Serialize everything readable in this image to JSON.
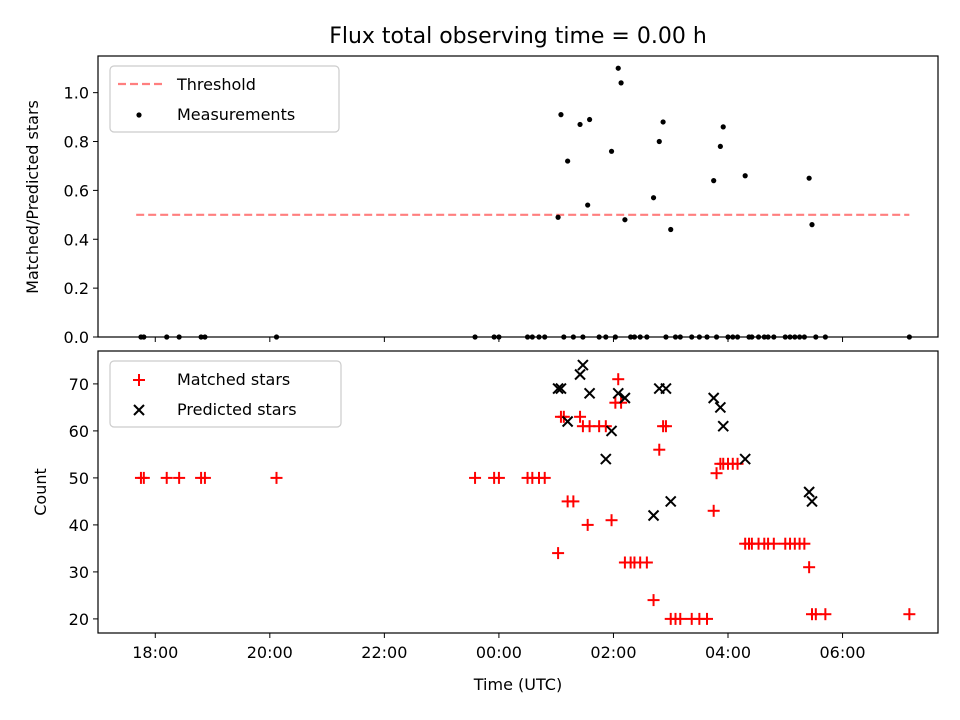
{
  "chart_data": [
    {
      "type": "scatter",
      "title": "Flux total observing time = 0.00 h",
      "xlabel": "",
      "ylabel": "Matched/Predicted stars",
      "xlim": [
        "17:00",
        "07:40"
      ],
      "ylim": [
        0,
        1.15
      ],
      "yticks": [
        "0.0",
        "0.2",
        "0.4",
        "0.6",
        "0.8",
        "1.0"
      ],
      "yticks_values": [
        0,
        0.2,
        0.4,
        0.6,
        0.8,
        1.0
      ],
      "legend": {
        "placement": "upper-left",
        "entries": [
          "Threshold",
          "Measurements"
        ]
      },
      "threshold": {
        "name": "Threshold",
        "value": 0.5,
        "x_start": "17:40",
        "x_end": "07:10",
        "color": "#ff7f7f",
        "style": "dashed"
      },
      "series": [
        {
          "name": "Measurements",
          "color": "#000000",
          "marker": "dot",
          "x": [
            "17:45",
            "17:48",
            "18:12",
            "18:25",
            "18:48",
            "18:52",
            "20:07",
            "23:35",
            "23:55",
            "00:00",
            "00:30",
            "00:35",
            "00:42",
            "00:48",
            "01:02",
            "01:05",
            "01:08",
            "01:12",
            "01:18",
            "01:25",
            "01:28",
            "01:33",
            "01:35",
            "01:45",
            "01:52",
            "01:58",
            "02:02",
            "02:05",
            "02:08",
            "02:12",
            "02:18",
            "02:22",
            "02:28",
            "02:35",
            "02:42",
            "02:48",
            "02:52",
            "02:55",
            "03:00",
            "03:05",
            "03:10",
            "03:22",
            "03:30",
            "03:38",
            "03:45",
            "03:48",
            "03:52",
            "03:55",
            "04:00",
            "04:05",
            "04:10",
            "04:18",
            "04:22",
            "04:25",
            "04:32",
            "04:38",
            "04:42",
            "04:48",
            "05:00",
            "05:05",
            "05:10",
            "05:15",
            "05:20",
            "05:25",
            "05:28",
            "05:32",
            "05:42",
            "07:10"
          ],
          "y": [
            0,
            0,
            0,
            0,
            0,
            0,
            0,
            0,
            0,
            0,
            0,
            0,
            0,
            0,
            0.49,
            0.91,
            0,
            0.72,
            0,
            0.87,
            0,
            0.54,
            0.89,
            0,
            0,
            0.76,
            0,
            1.1,
            1.04,
            0.48,
            0,
            0,
            0,
            0,
            0.57,
            0.8,
            0.88,
            0,
            0.44,
            0,
            0,
            0,
            0,
            0,
            0.64,
            0,
            0.78,
            0.86,
            0,
            0,
            0,
            0.66,
            0,
            0,
            0,
            0,
            0,
            0,
            0,
            0,
            0,
            0,
            0,
            0.65,
            0.46,
            0,
            0,
            0
          ]
        }
      ]
    },
    {
      "type": "scatter",
      "title": "",
      "xlabel": "Time (UTC)",
      "ylabel": "Count",
      "xlim": [
        "17:00",
        "07:40"
      ],
      "xticks": [
        "18:00",
        "20:00",
        "22:00",
        "00:00",
        "02:00",
        "04:00",
        "06:00"
      ],
      "ylim": [
        17,
        77
      ],
      "yticks": [
        "20",
        "30",
        "40",
        "50",
        "60",
        "70"
      ],
      "yticks_values": [
        20,
        30,
        40,
        50,
        60,
        70
      ],
      "legend": {
        "placement": "upper-left",
        "entries": [
          "Matched stars",
          "Predicted stars"
        ]
      },
      "series": [
        {
          "name": "Matched stars",
          "color": "#ff0000",
          "marker": "plus",
          "x": [
            "17:45",
            "17:48",
            "18:12",
            "18:25",
            "18:48",
            "18:52",
            "20:07",
            "23:35",
            "23:55",
            "00:00",
            "00:30",
            "00:35",
            "00:42",
            "00:48",
            "01:02",
            "01:05",
            "01:08",
            "01:12",
            "01:18",
            "01:25",
            "01:28",
            "01:33",
            "01:35",
            "01:45",
            "01:52",
            "01:58",
            "02:02",
            "02:05",
            "02:08",
            "02:12",
            "02:18",
            "02:22",
            "02:28",
            "02:35",
            "02:42",
            "02:48",
            "02:52",
            "02:55",
            "03:00",
            "03:05",
            "03:10",
            "03:22",
            "03:30",
            "03:38",
            "03:45",
            "03:48",
            "03:52",
            "03:55",
            "04:00",
            "04:05",
            "04:10",
            "04:18",
            "04:22",
            "04:25",
            "04:32",
            "04:38",
            "04:42",
            "04:48",
            "05:00",
            "05:05",
            "05:10",
            "05:15",
            "05:20",
            "05:25",
            "05:28",
            "05:32",
            "05:42",
            "07:10"
          ],
          "y": [
            50,
            50,
            50,
            50,
            50,
            50,
            50,
            50,
            50,
            50,
            50,
            50,
            50,
            50,
            34,
            63,
            63,
            45,
            45,
            63,
            61,
            40,
            61,
            61,
            61,
            41,
            66,
            71,
            66,
            32,
            32,
            32,
            32,
            32,
            24,
            56,
            61,
            61,
            20,
            20,
            20,
            20,
            20,
            20,
            43,
            51,
            53,
            53,
            53,
            53,
            53,
            36,
            36,
            36,
            36,
            36,
            36,
            36,
            36,
            36,
            36,
            36,
            36,
            31,
            21,
            21,
            21,
            21
          ]
        },
        {
          "name": "Predicted stars",
          "color": "#000000",
          "marker": "x",
          "x": [
            "01:02",
            "01:05",
            "01:12",
            "01:25",
            "01:28",
            "01:35",
            "01:52",
            "01:58",
            "02:05",
            "02:12",
            "02:42",
            "02:48",
            "02:55",
            "03:00",
            "03:45",
            "03:52",
            "03:55",
            "04:18",
            "05:25",
            "05:28"
          ],
          "y": [
            69,
            69,
            62,
            72,
            74,
            68,
            54,
            60,
            68,
            67,
            42,
            69,
            69,
            45,
            67,
            65,
            61,
            54,
            47,
            45
          ]
        }
      ]
    }
  ]
}
